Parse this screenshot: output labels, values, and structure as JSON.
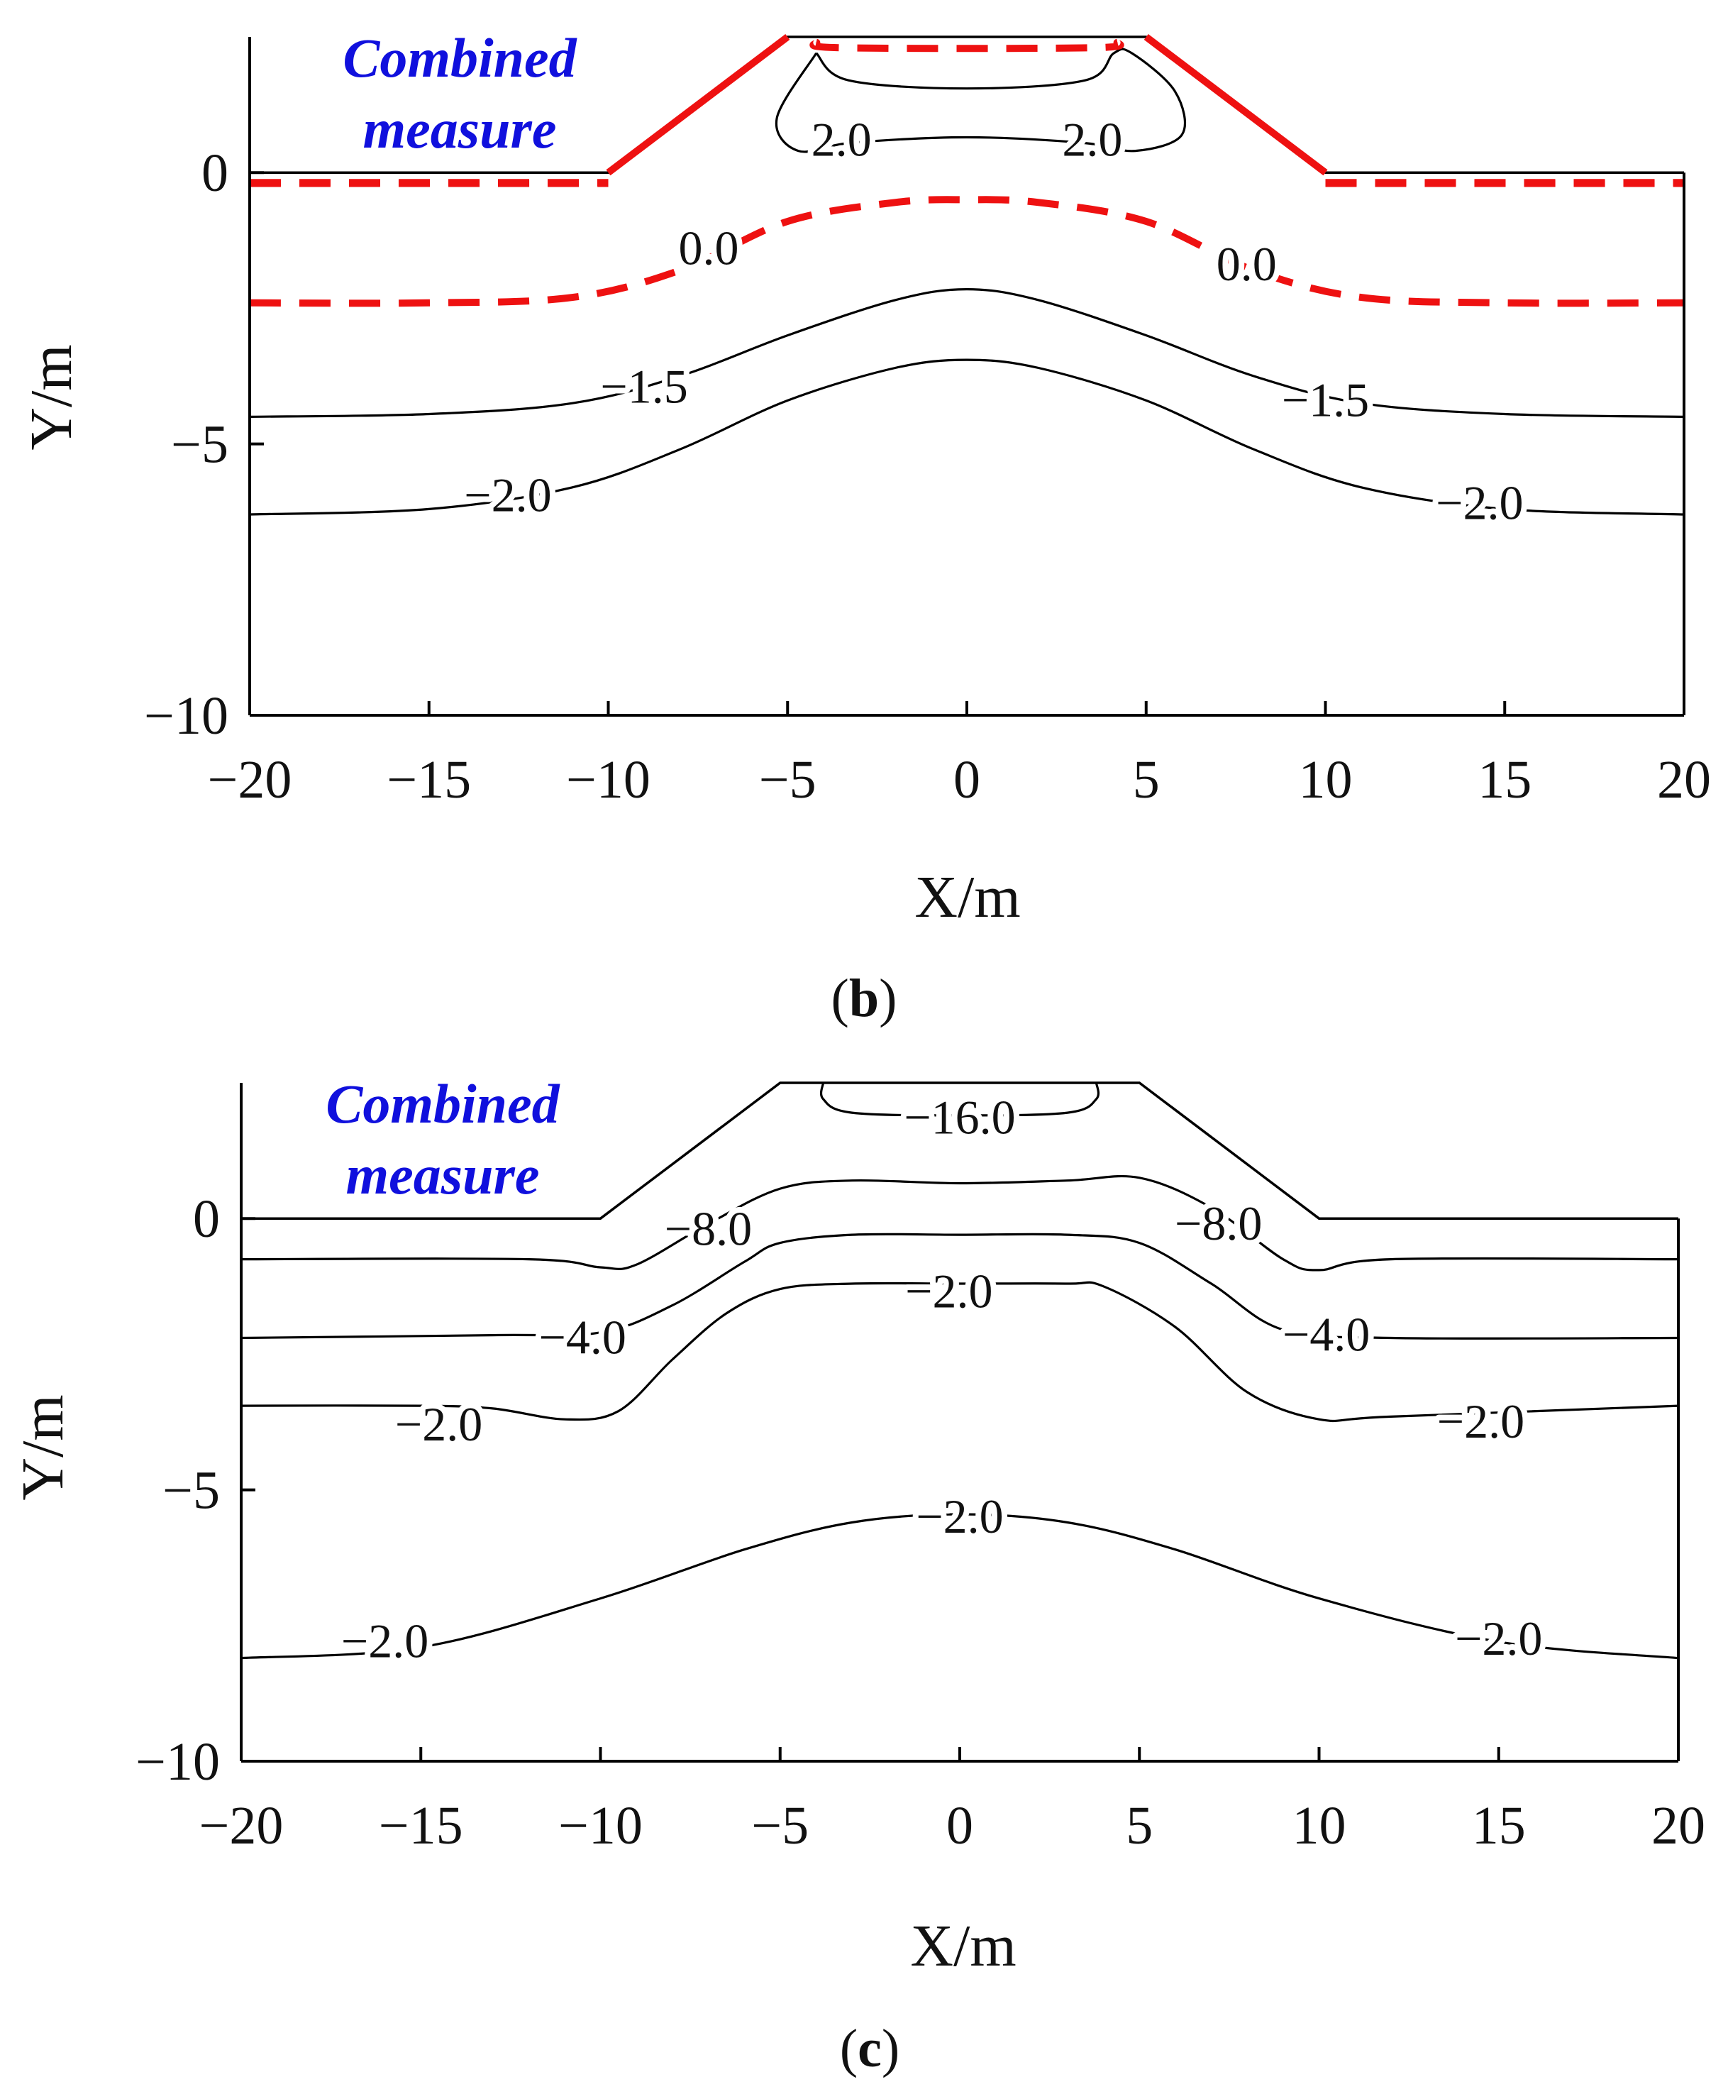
{
  "chart_data": [
    {
      "id": "b",
      "type": "contour",
      "caption": {
        "open": "(",
        "letter": "b",
        "close": ")"
      },
      "xlabel": "X/m",
      "ylabel": "Y/m",
      "xlim": [
        -20,
        20
      ],
      "ylim": [
        -10,
        2.5
      ],
      "xticks": [
        -20,
        -15,
        -10,
        -5,
        0,
        5,
        10,
        15,
        20
      ],
      "xtick_labels": [
        "−20",
        "−15",
        "−10",
        "−5",
        "0",
        "5",
        "10",
        "15",
        "20"
      ],
      "yticks": [
        0,
        -5,
        -10
      ],
      "ytick_labels": [
        "0",
        "−5",
        "−10"
      ],
      "annotation": {
        "line1": "Combined",
        "line2": "measure",
        "color": "#1010dd"
      },
      "embankment": {
        "points": [
          [
            -20,
            0
          ],
          [
            -10,
            0
          ],
          [
            -5,
            2.5
          ],
          [
            5,
            2.5
          ],
          [
            10,
            0
          ],
          [
            20,
            0
          ]
        ],
        "highlight_color": "#ee1111"
      },
      "contours": [
        {
          "value": 2.0,
          "style": "solid",
          "points": [
            [
              -4.2,
              2.2
            ],
            [
              -5.3,
              1.0
            ],
            [
              -4.7,
              0.4
            ],
            [
              -3.2,
              0.55
            ],
            [
              0,
              0.65
            ],
            [
              3.2,
              0.55
            ],
            [
              4.7,
              0.4
            ],
            [
              6.0,
              0.7
            ],
            [
              5.8,
              1.5
            ],
            [
              4.6,
              2.2
            ],
            [
              4.1,
              2.2
            ],
            [
              3.3,
              1.7
            ],
            [
              0,
              1.55
            ],
            [
              -3.3,
              1.7
            ],
            [
              -4.2,
              2.2
            ]
          ],
          "labels": [
            {
              "text": "2.0",
              "x": -3.5,
              "y": 0.6
            },
            {
              "text": "2.0",
              "x": 3.5,
              "y": 0.6
            }
          ]
        },
        {
          "value": 0.0,
          "style": "dashed-red",
          "points": [
            [
              -4.2,
              2.4
            ],
            [
              -3.5,
              2.3
            ],
            [
              3.5,
              2.3
            ],
            [
              4.2,
              2.4
            ]
          ],
          "labels": []
        },
        {
          "value": 0.0,
          "style": "dashed-red",
          "points": [
            [
              -20,
              -0.2
            ],
            [
              -10,
              -0.2
            ]
          ],
          "labels": []
        },
        {
          "value": 0.0,
          "style": "dashed-red",
          "points": [
            [
              10,
              -0.2
            ],
            [
              20,
              -0.2
            ]
          ],
          "labels": []
        },
        {
          "value": 0.0,
          "style": "dashed-red",
          "points": [
            [
              -20,
              -2.4
            ],
            [
              -15,
              -2.4
            ],
            [
              -11,
              -2.3
            ],
            [
              -8,
              -1.8
            ],
            [
              -5,
              -0.9
            ],
            [
              -2,
              -0.55
            ],
            [
              0,
              -0.5
            ],
            [
              2,
              -0.55
            ],
            [
              5,
              -0.9
            ],
            [
              8,
              -1.8
            ],
            [
              11,
              -2.3
            ],
            [
              15,
              -2.4
            ],
            [
              20,
              -2.4
            ]
          ],
          "labels": [
            {
              "text": "0.0",
              "x": -7.2,
              "y": -1.4
            },
            {
              "text": "0.0",
              "x": 7.8,
              "y": -1.7
            }
          ]
        },
        {
          "value": -1.5,
          "style": "solid",
          "points": [
            [
              -20,
              -4.5
            ],
            [
              -15,
              -4.45
            ],
            [
              -11,
              -4.25
            ],
            [
              -8,
              -3.75
            ],
            [
              -5,
              -3.0
            ],
            [
              -2,
              -2.35
            ],
            [
              0,
              -2.15
            ],
            [
              2,
              -2.35
            ],
            [
              5,
              -3.0
            ],
            [
              8,
              -3.75
            ],
            [
              11,
              -4.25
            ],
            [
              15,
              -4.45
            ],
            [
              20,
              -4.5
            ]
          ],
          "labels": [
            {
              "text": "−1.5",
              "x": -9.0,
              "y": -3.95
            },
            {
              "text": "−1.5",
              "x": 10.0,
              "y": -4.2
            }
          ]
        },
        {
          "value": -2.0,
          "style": "solid",
          "points": [
            [
              -20,
              -6.3
            ],
            [
              -15,
              -6.2
            ],
            [
              -11,
              -5.8
            ],
            [
              -8,
              -5.1
            ],
            [
              -5,
              -4.2
            ],
            [
              -2,
              -3.6
            ],
            [
              0,
              -3.45
            ],
            [
              2,
              -3.6
            ],
            [
              5,
              -4.2
            ],
            [
              8,
              -5.1
            ],
            [
              11,
              -5.8
            ],
            [
              15,
              -6.2
            ],
            [
              20,
              -6.3
            ]
          ],
          "labels": [
            {
              "text": "−2.0",
              "x": -12.8,
              "y": -5.95
            },
            {
              "text": "−2.0",
              "x": 14.3,
              "y": -6.1
            }
          ]
        }
      ]
    },
    {
      "id": "c",
      "type": "contour",
      "caption": {
        "open": "(",
        "letter": "c",
        "close": ")"
      },
      "xlabel": "X/m",
      "ylabel": "Y/m",
      "xlim": [
        -20,
        20
      ],
      "ylim": [
        -10,
        2.5
      ],
      "xticks": [
        -20,
        -15,
        -10,
        -5,
        0,
        5,
        10,
        15,
        20
      ],
      "xtick_labels": [
        "−20",
        "−15",
        "−10",
        "−5",
        "0",
        "5",
        "10",
        "15",
        "20"
      ],
      "yticks": [
        0,
        -5,
        -10
      ],
      "ytick_labels": [
        "0",
        "−5",
        "−10"
      ],
      "annotation": {
        "line1": "Combined",
        "line2": "measure",
        "color": "#1010dd"
      },
      "embankment": {
        "points": [
          [
            -20,
            0
          ],
          [
            -10,
            0
          ],
          [
            -5,
            2.5
          ],
          [
            5,
            2.5
          ],
          [
            10,
            0
          ],
          [
            20,
            0
          ]
        ],
        "highlight_color": null
      },
      "contours": [
        {
          "value": -16.0,
          "style": "solid",
          "points": [
            [
              -3.8,
              2.5
            ],
            [
              -3.8,
              2.2
            ],
            [
              -3.0,
              1.95
            ],
            [
              0,
              1.9
            ],
            [
              3.0,
              1.95
            ],
            [
              3.8,
              2.2
            ],
            [
              3.8,
              2.5
            ]
          ],
          "labels": [
            {
              "text": "−16.0",
              "x": 0,
              "y": 1.85
            }
          ]
        },
        {
          "value": -8.0,
          "style": "solid",
          "points": [
            [
              -20,
              -0.75
            ],
            [
              -12,
              -0.75
            ],
            [
              -10,
              -0.9
            ],
            [
              -9,
              -0.85
            ],
            [
              -7,
              -0.1
            ],
            [
              -5,
              0.55
            ],
            [
              -3,
              0.7
            ],
            [
              0,
              0.65
            ],
            [
              3,
              0.7
            ],
            [
              5,
              0.75
            ],
            [
              7,
              0.2
            ],
            [
              9,
              -0.75
            ],
            [
              10,
              -0.95
            ],
            [
              12,
              -0.75
            ],
            [
              20,
              -0.75
            ]
          ],
          "labels": [
            {
              "text": "−8.0",
              "x": -7.0,
              "y": -0.2
            },
            {
              "text": "−8.0",
              "x": 7.2,
              "y": -0.1
            }
          ]
        },
        {
          "value": -4.0,
          "style": "solid",
          "points": [
            [
              -20,
              -2.2
            ],
            [
              -13,
              -2.15
            ],
            [
              -10,
              -2.1
            ],
            [
              -8,
              -1.6
            ],
            [
              -6,
              -0.8
            ],
            [
              -5,
              -0.45
            ],
            [
              -3,
              -0.3
            ],
            [
              0,
              -0.3
            ],
            [
              3,
              -0.3
            ],
            [
              5,
              -0.45
            ],
            [
              7,
              -1.2
            ],
            [
              9,
              -2.05
            ],
            [
              12,
              -2.2
            ],
            [
              20,
              -2.2
            ]
          ],
          "labels": [
            {
              "text": "−4.0",
              "x": -10.5,
              "y": -2.2
            },
            {
              "text": "−4.0",
              "x": 10.2,
              "y": -2.15
            }
          ]
        },
        {
          "value": -2.0,
          "style": "solid",
          "points": [
            [
              -20,
              -3.45
            ],
            [
              -15,
              -3.45
            ],
            [
              -13,
              -3.5
            ],
            [
              -11,
              -3.7
            ],
            [
              -9.5,
              -3.55
            ],
            [
              -8,
              -2.6
            ],
            [
              -6.5,
              -1.75
            ],
            [
              -5,
              -1.3
            ],
            [
              -3,
              -1.2
            ],
            [
              0,
              -1.2
            ],
            [
              3,
              -1.2
            ],
            [
              4,
              -1.25
            ],
            [
              6,
              -2.0
            ],
            [
              8,
              -3.2
            ],
            [
              10,
              -3.7
            ],
            [
              12,
              -3.65
            ],
            [
              20,
              -3.45
            ]
          ],
          "labels": [
            {
              "text": "−2.0",
              "x": -0.3,
              "y": -1.35
            },
            {
              "text": "−2.0",
              "x": -14.5,
              "y": -3.8
            },
            {
              "text": "−2.0",
              "x": 14.5,
              "y": -3.75
            }
          ]
        },
        {
          "value": -2.0,
          "style": "solid",
          "points": [
            [
              -20,
              -8.1
            ],
            [
              -15,
              -7.9
            ],
            [
              -10,
              -7.0
            ],
            [
              -6,
              -6.1
            ],
            [
              -3,
              -5.6
            ],
            [
              0,
              -5.45
            ],
            [
              3,
              -5.6
            ],
            [
              6,
              -6.1
            ],
            [
              10,
              -7.0
            ],
            [
              15,
              -7.8
            ],
            [
              20,
              -8.1
            ]
          ],
          "labels": [
            {
              "text": "−2.0",
              "x": 0,
              "y": -5.5
            },
            {
              "text": "−2.0",
              "x": -16.0,
              "y": -7.8
            },
            {
              "text": "−2.0",
              "x": 15.0,
              "y": -7.75
            }
          ]
        }
      ]
    }
  ]
}
